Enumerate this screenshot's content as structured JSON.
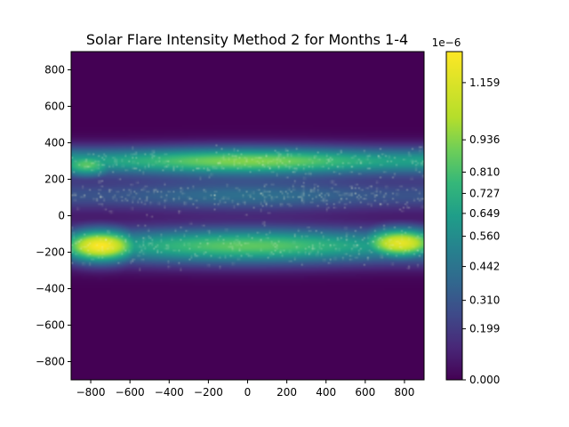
{
  "chart_data": {
    "type": "heatmap",
    "title": "Solar Flare Intensity Method 2 for Months 1-4",
    "xlabel": "",
    "ylabel": "",
    "xlim": [
      -900,
      900
    ],
    "ylim": [
      -900,
      900
    ],
    "x_ticks": [
      -800,
      -600,
      -400,
      -200,
      0,
      200,
      400,
      600,
      800
    ],
    "y_ticks": [
      -800,
      -600,
      -400,
      -200,
      0,
      200,
      400,
      600,
      800
    ],
    "x_tick_labels": [
      "−800",
      "−600",
      "−400",
      "−200",
      "0",
      "200",
      "400",
      "600",
      "800"
    ],
    "y_tick_labels": [
      "−800",
      "−600",
      "−400",
      "−200",
      "0",
      "200",
      "400",
      "600",
      "800"
    ],
    "colorbar": {
      "scale_label": "1e−6",
      "min": 0.0,
      "max": 1.28,
      "ticks": [
        0.0,
        0.199,
        0.31,
        0.442,
        0.56,
        0.649,
        0.727,
        0.81,
        0.936,
        1.159
      ],
      "tick_labels": [
        "0.000",
        "0.199",
        "0.310",
        "0.442",
        "0.560",
        "0.649",
        "0.727",
        "0.810",
        "0.936",
        "1.159"
      ],
      "colormap": "viridis"
    },
    "grid": false,
    "intensity_bands": [
      {
        "name": "upper band",
        "y_center": 300,
        "y_sigma": 55,
        "peak": 0.93
      },
      {
        "name": "middle band",
        "y_center": 110,
        "y_sigma": 60,
        "peak": 0.42
      },
      {
        "name": "lower band",
        "y_center": -165,
        "y_sigma": 70,
        "peak": 0.86
      }
    ],
    "hot_spots": [
      {
        "x": -750,
        "y": -165,
        "x_sigma": 150,
        "y_sigma": 65,
        "peak": 1.28
      },
      {
        "x": 780,
        "y": -150,
        "x_sigma": 150,
        "y_sigma": 60,
        "peak": 1.2
      },
      {
        "x": -820,
        "y": 280,
        "x_sigma": 120,
        "y_sigma": 50,
        "peak": 0.85
      }
    ]
  }
}
